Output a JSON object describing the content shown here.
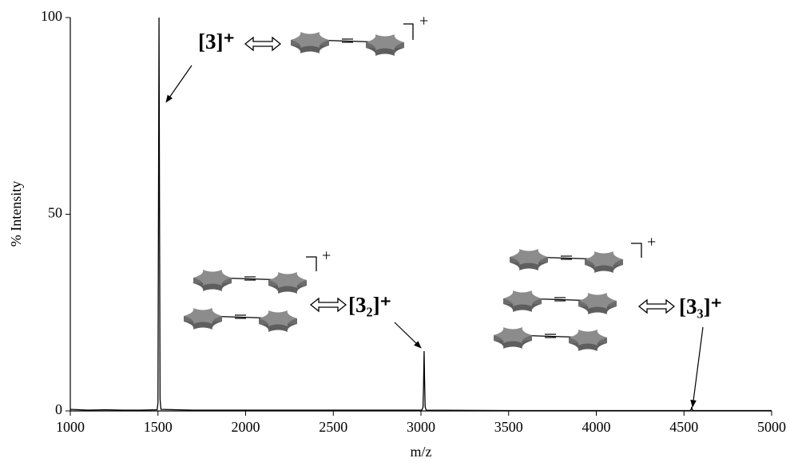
{
  "chart_data": {
    "type": "line",
    "x_label": "m/z",
    "y_label": "% Intensity",
    "xlim": [
      1000,
      5000
    ],
    "ylim": [
      0,
      100
    ],
    "xticks": [
      1000,
      1500,
      2000,
      2500,
      3000,
      3500,
      4000,
      4500,
      5000
    ],
    "yticks": [
      0,
      50,
      100
    ],
    "series": [
      {
        "color": "#000000",
        "x": [
          1000,
          1100,
          1200,
          1300,
          1400,
          1495,
          1500,
          1503,
          1506,
          1509,
          1512,
          1517,
          1600,
          1700,
          2000,
          2500,
          3005,
          3012,
          3015,
          3018,
          3021,
          3024,
          3030,
          3500,
          4000,
          4535,
          4541,
          4544,
          4547,
          4553,
          5000
        ],
        "values": [
          0.4,
          0.2,
          0.3,
          0.2,
          0.2,
          0.3,
          2,
          50,
          100,
          50,
          3,
          0.4,
          0.3,
          0.2,
          0.2,
          0.2,
          0.2,
          1,
          7,
          15.2,
          7,
          1,
          0.2,
          0.1,
          0.1,
          0.1,
          0.4,
          1,
          0.4,
          0.1,
          0.1
        ]
      }
    ],
    "annotations": [
      {
        "label": "[3]⁺",
        "complex_charge": "+"
      },
      {
        "label": "[3₂]⁺",
        "complex_charge": "+"
      },
      {
        "label": "[3₃]⁺",
        "complex_charge": "+"
      }
    ]
  }
}
